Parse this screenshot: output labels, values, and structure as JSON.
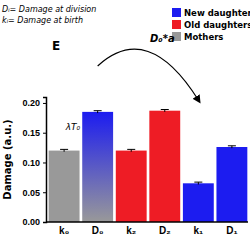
{
  "chart_data": {
    "type": "bar",
    "title": "E",
    "categories": [
      "k₀",
      "D₀",
      "k₂",
      "D₂",
      "k₁",
      "D₁"
    ],
    "series": [
      {
        "name": "New daughters",
        "color": "#1c1cf0",
        "values": [
          null,
          0.185,
          null,
          null,
          0.065,
          0.126
        ],
        "errors": [
          null,
          0.002,
          null,
          null,
          0.002,
          0.002
        ]
      },
      {
        "name": "Old daughters",
        "color": "#ee1c25",
        "values": [
          null,
          null,
          0.12,
          0.187,
          null,
          null
        ],
        "errors": [
          null,
          null,
          0.002,
          0.002,
          null,
          null
        ]
      },
      {
        "name": "Mothers",
        "color": "#999999",
        "values": [
          0.12,
          null,
          null,
          null,
          null,
          null
        ],
        "errors": [
          0.002,
          null,
          null,
          null,
          null,
          null
        ]
      }
    ],
    "y_label": "Damage (a.u.)",
    "ylim": [
      0,
      0.21
    ],
    "yticks": [
      {
        "value": 0,
        "label": "0.00"
      },
      {
        "value": 0.05,
        "label": "0.05"
      },
      {
        "value": 0.1,
        "label": "0.10"
      },
      {
        "value": 0.15,
        "label": "0.15"
      },
      {
        "value": 0.2,
        "label": "0.20"
      }
    ],
    "legend": "top-right",
    "annotations": [
      "Dᵢ= Damage at division",
      "kᵢ= Damage at birth",
      "D₀*a",
      "λT₀"
    ]
  }
}
